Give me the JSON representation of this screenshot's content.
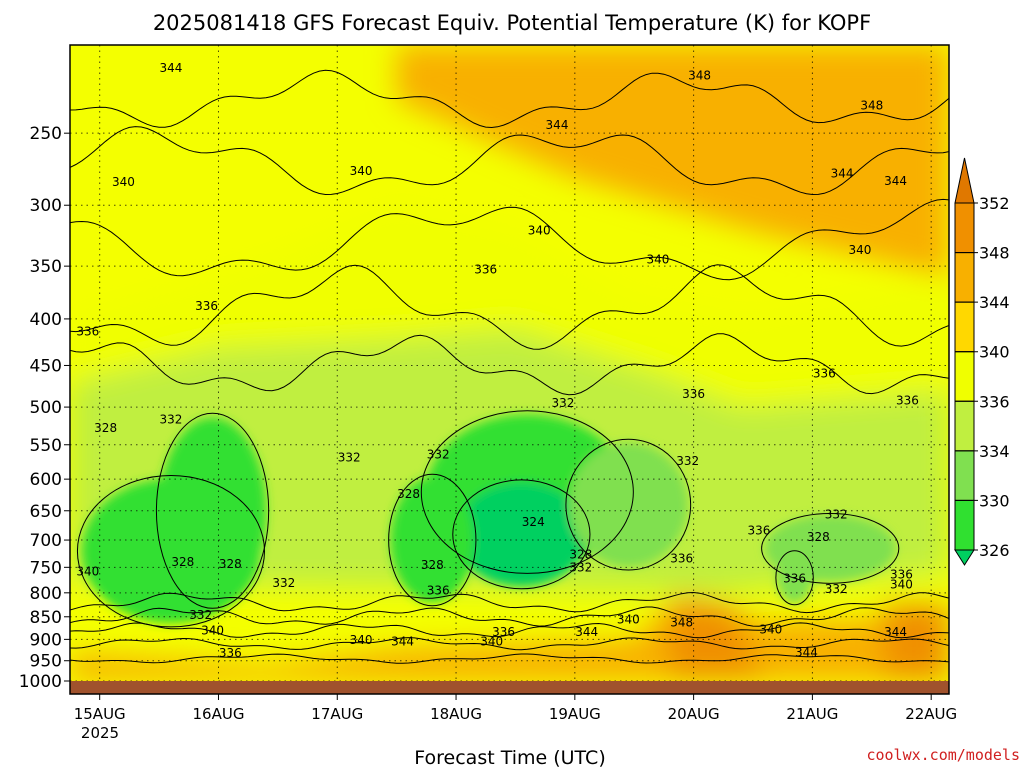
{
  "chart_data": {
    "type": "heatmap",
    "title": "2025081418 GFS Forecast Equiv. Potential Temperature (K) for KOPF",
    "xlabel": "Forecast Time (UTC)",
    "ylabel": "",
    "x_ticks": [
      "15AUG",
      "16AUG",
      "17AUG",
      "18AUG",
      "19AUG",
      "20AUG",
      "21AUG",
      "22AUG"
    ],
    "x_year": "2025",
    "x_range_days": [
      14.75,
      22.15
    ],
    "y_ticks": [
      250,
      300,
      350,
      400,
      450,
      500,
      550,
      600,
      650,
      700,
      750,
      800,
      850,
      900,
      950,
      1000
    ],
    "y_range_hPa": [
      200,
      1000
    ],
    "y_scale": "log-pressure",
    "colorbar": {
      "levels": [
        326,
        330,
        334,
        336,
        340,
        344,
        348,
        352
      ],
      "labels": [
        "352",
        "348",
        "344",
        "340",
        "336",
        "334",
        "330",
        "326"
      ],
      "colors": [
        "#00d060",
        "#30e030",
        "#80e050",
        "#c0ef40",
        "#f0ff00",
        "#ffd800",
        "#f8b000",
        "#f09000",
        "#e07800"
      ]
    },
    "contour_labels": [
      {
        "text": "344",
        "day": 15.6,
        "p": 212
      },
      {
        "text": "348",
        "day": 20.05,
        "p": 216
      },
      {
        "text": "348",
        "day": 21.5,
        "p": 233
      },
      {
        "text": "344",
        "day": 18.85,
        "p": 245
      },
      {
        "text": "340",
        "day": 15.2,
        "p": 283
      },
      {
        "text": "340",
        "day": 17.2,
        "p": 275
      },
      {
        "text": "344",
        "day": 21.25,
        "p": 277
      },
      {
        "text": "344",
        "day": 21.7,
        "p": 282
      },
      {
        "text": "340",
        "day": 18.7,
        "p": 320
      },
      {
        "text": "340",
        "day": 19.7,
        "p": 344
      },
      {
        "text": "340",
        "day": 21.4,
        "p": 336
      },
      {
        "text": "336",
        "day": 18.25,
        "p": 353
      },
      {
        "text": "336",
        "day": 15.9,
        "p": 387
      },
      {
        "text": "336",
        "day": 14.9,
        "p": 413
      },
      {
        "text": "336",
        "day": 21.1,
        "p": 459
      },
      {
        "text": "336",
        "day": 20.0,
        "p": 484
      },
      {
        "text": "336",
        "day": 21.8,
        "p": 492
      },
      {
        "text": "332",
        "day": 18.9,
        "p": 495
      },
      {
        "text": "332",
        "day": 15.6,
        "p": 516
      },
      {
        "text": "328",
        "day": 15.05,
        "p": 527
      },
      {
        "text": "332",
        "day": 17.1,
        "p": 568
      },
      {
        "text": "332",
        "day": 17.85,
        "p": 564
      },
      {
        "text": "332",
        "day": 19.95,
        "p": 573
      },
      {
        "text": "328",
        "day": 17.6,
        "p": 623
      },
      {
        "text": "324",
        "day": 18.65,
        "p": 669
      },
      {
        "text": "332",
        "day": 21.2,
        "p": 656
      },
      {
        "text": "336",
        "day": 20.55,
        "p": 683
      },
      {
        "text": "328",
        "day": 21.05,
        "p": 695
      },
      {
        "text": "336",
        "day": 19.9,
        "p": 733
      },
      {
        "text": "328",
        "day": 19.05,
        "p": 726
      },
      {
        "text": "328",
        "day": 15.7,
        "p": 740
      },
      {
        "text": "328",
        "day": 16.1,
        "p": 744
      },
      {
        "text": "328",
        "day": 17.8,
        "p": 746
      },
      {
        "text": "332",
        "day": 19.05,
        "p": 750
      },
      {
        "text": "340",
        "day": 14.9,
        "p": 758
      },
      {
        "text": "336",
        "day": 20.85,
        "p": 772
      },
      {
        "text": "336",
        "day": 21.75,
        "p": 764
      },
      {
        "text": "332",
        "day": 16.55,
        "p": 780
      },
      {
        "text": "340",
        "day": 21.75,
        "p": 783
      },
      {
        "text": "336",
        "day": 17.85,
        "p": 795
      },
      {
        "text": "332",
        "day": 21.2,
        "p": 792
      },
      {
        "text": "332",
        "day": 15.85,
        "p": 846
      },
      {
        "text": "348",
        "day": 19.9,
        "p": 862
      },
      {
        "text": "340",
        "day": 15.95,
        "p": 880
      },
      {
        "text": "340",
        "day": 19.45,
        "p": 856
      },
      {
        "text": "340",
        "day": 20.65,
        "p": 878
      },
      {
        "text": "344",
        "day": 19.1,
        "p": 883
      },
      {
        "text": "336",
        "day": 18.4,
        "p": 883
      },
      {
        "text": "344",
        "day": 21.7,
        "p": 883
      },
      {
        "text": "340",
        "day": 17.2,
        "p": 902
      },
      {
        "text": "344",
        "day": 17.55,
        "p": 905
      },
      {
        "text": "340",
        "day": 18.3,
        "p": 905
      },
      {
        "text": "336",
        "day": 16.1,
        "p": 932
      },
      {
        "text": "344",
        "day": 20.95,
        "p": 930
      }
    ],
    "moist_regions": [
      {
        "day": 15.6,
        "p": 720,
        "rx": 0.75,
        "ry": 130,
        "value": 326
      },
      {
        "day": 15.95,
        "p": 650,
        "rx": 0.45,
        "ry": 150,
        "value": 328
      },
      {
        "day": 18.6,
        "p": 620,
        "rx": 0.85,
        "ry": 120,
        "value": 326
      },
      {
        "day": 18.55,
        "p": 690,
        "rx": 0.55,
        "ry": 90,
        "value": 324
      },
      {
        "day": 17.8,
        "p": 700,
        "rx": 0.35,
        "ry": 110,
        "value": 328
      },
      {
        "day": 19.45,
        "p": 640,
        "rx": 0.5,
        "ry": 100,
        "value": 331
      },
      {
        "day": 21.15,
        "p": 715,
        "rx": 0.55,
        "ry": 60,
        "value": 332
      },
      {
        "day": 20.85,
        "p": 770,
        "rx": 0.15,
        "ry": 50,
        "value": 333
      }
    ]
  },
  "credit": "coolwx.com/models"
}
